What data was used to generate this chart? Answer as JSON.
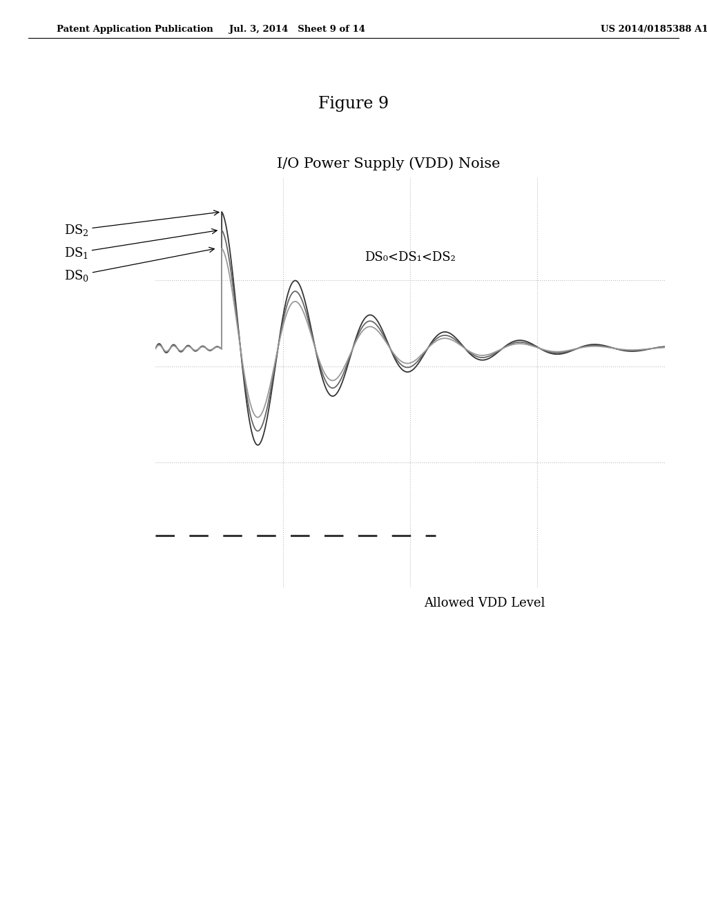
{
  "header_left": "Patent Application Publication",
  "header_mid": "Jul. 3, 2014   Sheet 9 of 14",
  "header_right": "US 2014/0185388 A1",
  "figure_title": "Figure 9",
  "chart_title": "I/O Power Supply (VDD) Noise",
  "annotation_text": "DS₀<DS₁<DS₂",
  "allowed_vdd_label": "Allowed VDD Level",
  "background_color": "#ffffff",
  "line_colors": [
    "#333333",
    "#666666",
    "#999999"
  ],
  "grid_color": "#bbbbbb",
  "dashed_line_color": "#333333",
  "ylim": [
    -1.05,
    0.75
  ],
  "xlim": [
    0,
    10
  ]
}
